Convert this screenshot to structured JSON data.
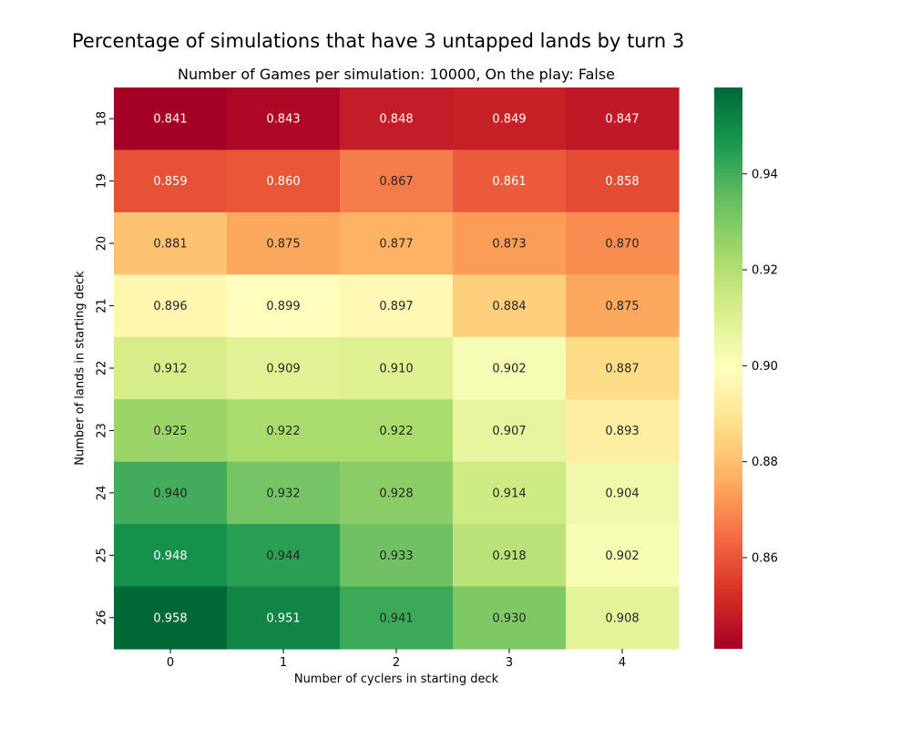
{
  "chart_data": {
    "type": "heatmap",
    "suptitle": "Percentage of simulations that have 3 untapped lands by turn 3",
    "title": "Number of Games per simulation: 10000, On the play: False",
    "xlabel": "Number of cyclers in starting deck",
    "ylabel": "Number of lands in starting deck",
    "x_categories": [
      "0",
      "1",
      "2",
      "3",
      "4"
    ],
    "y_categories": [
      "18",
      "19",
      "20",
      "21",
      "22",
      "23",
      "24",
      "25",
      "26"
    ],
    "values": [
      [
        0.841,
        0.843,
        0.848,
        0.849,
        0.847
      ],
      [
        0.859,
        0.86,
        0.867,
        0.861,
        0.858
      ],
      [
        0.881,
        0.875,
        0.877,
        0.873,
        0.87
      ],
      [
        0.896,
        0.899,
        0.897,
        0.884,
        0.875
      ],
      [
        0.912,
        0.909,
        0.91,
        0.902,
        0.887
      ],
      [
        0.925,
        0.922,
        0.922,
        0.907,
        0.893
      ],
      [
        0.94,
        0.932,
        0.928,
        0.914,
        0.904
      ],
      [
        0.948,
        0.944,
        0.933,
        0.918,
        0.902
      ],
      [
        0.958,
        0.951,
        0.941,
        0.93,
        0.908
      ]
    ],
    "value_format": "3 decimals",
    "colormap": "RdYlGn",
    "colorbar": {
      "vmin": 0.841,
      "vmax": 0.958,
      "ticks": [
        "0.86",
        "0.88",
        "0.90",
        "0.92",
        "0.94"
      ]
    }
  }
}
